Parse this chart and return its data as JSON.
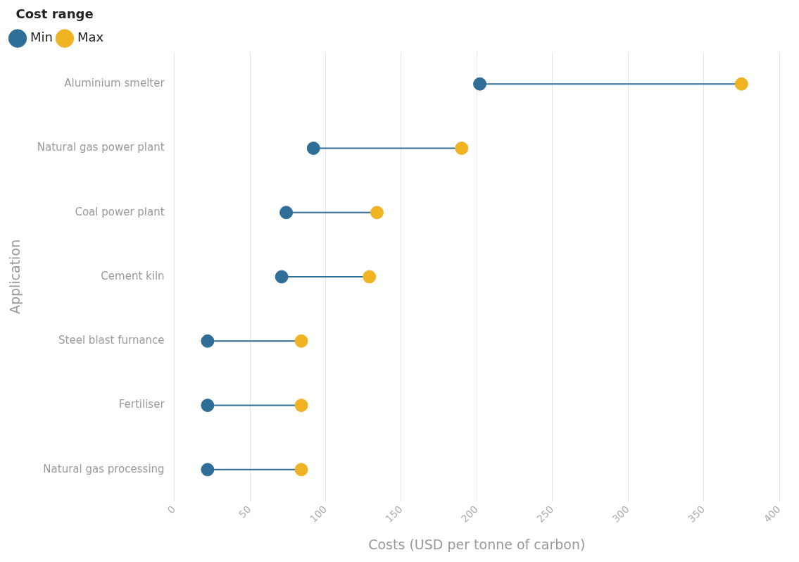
{
  "chart_data": {
    "type": "scatter",
    "orientation": "horizontal",
    "xlabel": "Costs (USD per tonne of carbon)",
    "ylabel": "Application",
    "legend_title": "Cost range",
    "legend": "top left",
    "grid": "x",
    "marker": "circle",
    "categories": [
      "Aluminium smelter",
      "Natural gas power plant",
      "Coal power plant",
      "Cement kiln",
      "Steel blast furnance",
      "Fertiliser",
      "Natural gas processing"
    ],
    "xlim": [
      0,
      400
    ],
    "xticks": [
      0,
      50,
      100,
      150,
      200,
      250,
      300,
      350,
      400
    ],
    "series": [
      {
        "name": "Min",
        "color": "#2e6e97",
        "values": [
          202,
          92,
          74,
          71,
          22,
          22,
          22
        ]
      },
      {
        "name": "Max",
        "color": "#f0b323",
        "values": [
          375,
          190,
          134,
          129,
          84,
          84,
          84
        ]
      }
    ]
  }
}
